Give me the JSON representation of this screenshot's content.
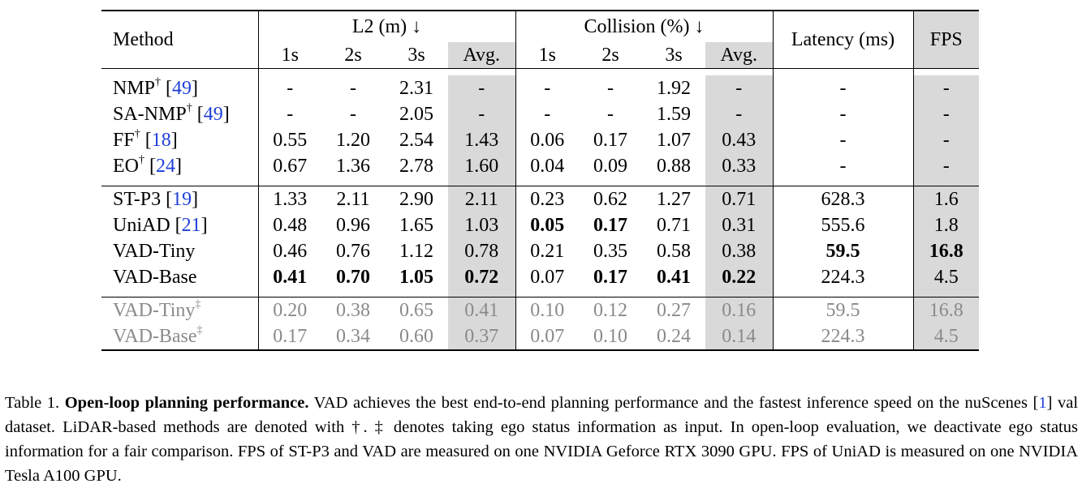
{
  "table": {
    "header": {
      "method": "Method",
      "l2_group": "L2 (m) ↓",
      "collision_group": "Collision (%) ↓",
      "latency": "Latency (ms)",
      "fps": "FPS",
      "sub": [
        "1s",
        "2s",
        "3s",
        "Avg.",
        "1s",
        "2s",
        "3s",
        "Avg."
      ]
    },
    "groups": [
      {
        "rows": [
          {
            "name": "NMP",
            "mark": "†",
            "cite": "49",
            "l2": [
              "-",
              "-",
              "2.31",
              "-"
            ],
            "col": [
              "-",
              "-",
              "1.92",
              "-"
            ],
            "latency": "-",
            "fps": "-"
          },
          {
            "name": "SA-NMP",
            "mark": "†",
            "cite": "49",
            "l2": [
              "-",
              "-",
              "2.05",
              "-"
            ],
            "col": [
              "-",
              "-",
              "1.59",
              "-"
            ],
            "latency": "-",
            "fps": "-"
          },
          {
            "name": "FF",
            "mark": "†",
            "cite": "18",
            "l2": [
              "0.55",
              "1.20",
              "2.54",
              "1.43"
            ],
            "col": [
              "0.06",
              "0.17",
              "1.07",
              "0.43"
            ],
            "latency": "-",
            "fps": "-"
          },
          {
            "name": "EO",
            "mark": "†",
            "cite": "24",
            "l2": [
              "0.67",
              "1.36",
              "2.78",
              "1.60"
            ],
            "col": [
              "0.04",
              "0.09",
              "0.88",
              "0.33"
            ],
            "latency": "-",
            "fps": "-"
          }
        ]
      },
      {
        "rows": [
          {
            "name": "ST-P3",
            "mark": "",
            "cite": "19",
            "l2": [
              "1.33",
              "2.11",
              "2.90",
              "2.11"
            ],
            "col": [
              "0.23",
              "0.62",
              "1.27",
              "0.71"
            ],
            "latency": "628.3",
            "fps": "1.6"
          },
          {
            "name": "UniAD",
            "mark": "",
            "cite": "21",
            "l2": [
              "0.48",
              "0.96",
              "1.65",
              "1.03"
            ],
            "col": [
              "0.05",
              "0.17",
              "0.71",
              "0.31"
            ],
            "latency": "555.6",
            "fps": "1.8"
          },
          {
            "name": "VAD-Tiny",
            "mark": "",
            "cite": "",
            "l2": [
              "0.46",
              "0.76",
              "1.12",
              "0.78"
            ],
            "col": [
              "0.21",
              "0.35",
              "0.58",
              "0.38"
            ],
            "latency": "59.5",
            "fps": "16.8"
          },
          {
            "name": "VAD-Base",
            "mark": "",
            "cite": "",
            "l2": [
              "0.41",
              "0.70",
              "1.05",
              "0.72"
            ],
            "col": [
              "0.07",
              "0.17",
              "0.41",
              "0.22"
            ],
            "latency": "224.3",
            "fps": "4.5"
          }
        ]
      },
      {
        "rows": [
          {
            "name": "VAD-Tiny",
            "mark": "‡",
            "cite": "",
            "l2": [
              "0.20",
              "0.38",
              "0.65",
              "0.41"
            ],
            "col": [
              "0.10",
              "0.12",
              "0.27",
              "0.16"
            ],
            "latency": "59.5",
            "fps": "16.8"
          },
          {
            "name": "VAD-Base",
            "mark": "‡",
            "cite": "",
            "l2": [
              "0.17",
              "0.34",
              "0.60",
              "0.37"
            ],
            "col": [
              "0.07",
              "0.10",
              "0.24",
              "0.14"
            ],
            "latency": "224.3",
            "fps": "4.5"
          }
        ]
      }
    ]
  },
  "caption": {
    "label": "Table 1.",
    "bold_title": "Open-loop planning performance.",
    "text_1": "VAD achieves the best end-to-end planning performance and the fastest inference speed on the nuScenes [",
    "cite": "1",
    "text_2": "] val dataset. LiDAR-based methods are denoted with †. ‡ denotes taking ego status information as input. In open-loop evaluation, we deactivate ego status information for a fair comparison. FPS of ST-P3 and VAD are measured on one NVIDIA Geforce RTX 3090 GPU. FPS of UniAD is measured on one NVIDIA Tesla A100 GPU."
  }
}
